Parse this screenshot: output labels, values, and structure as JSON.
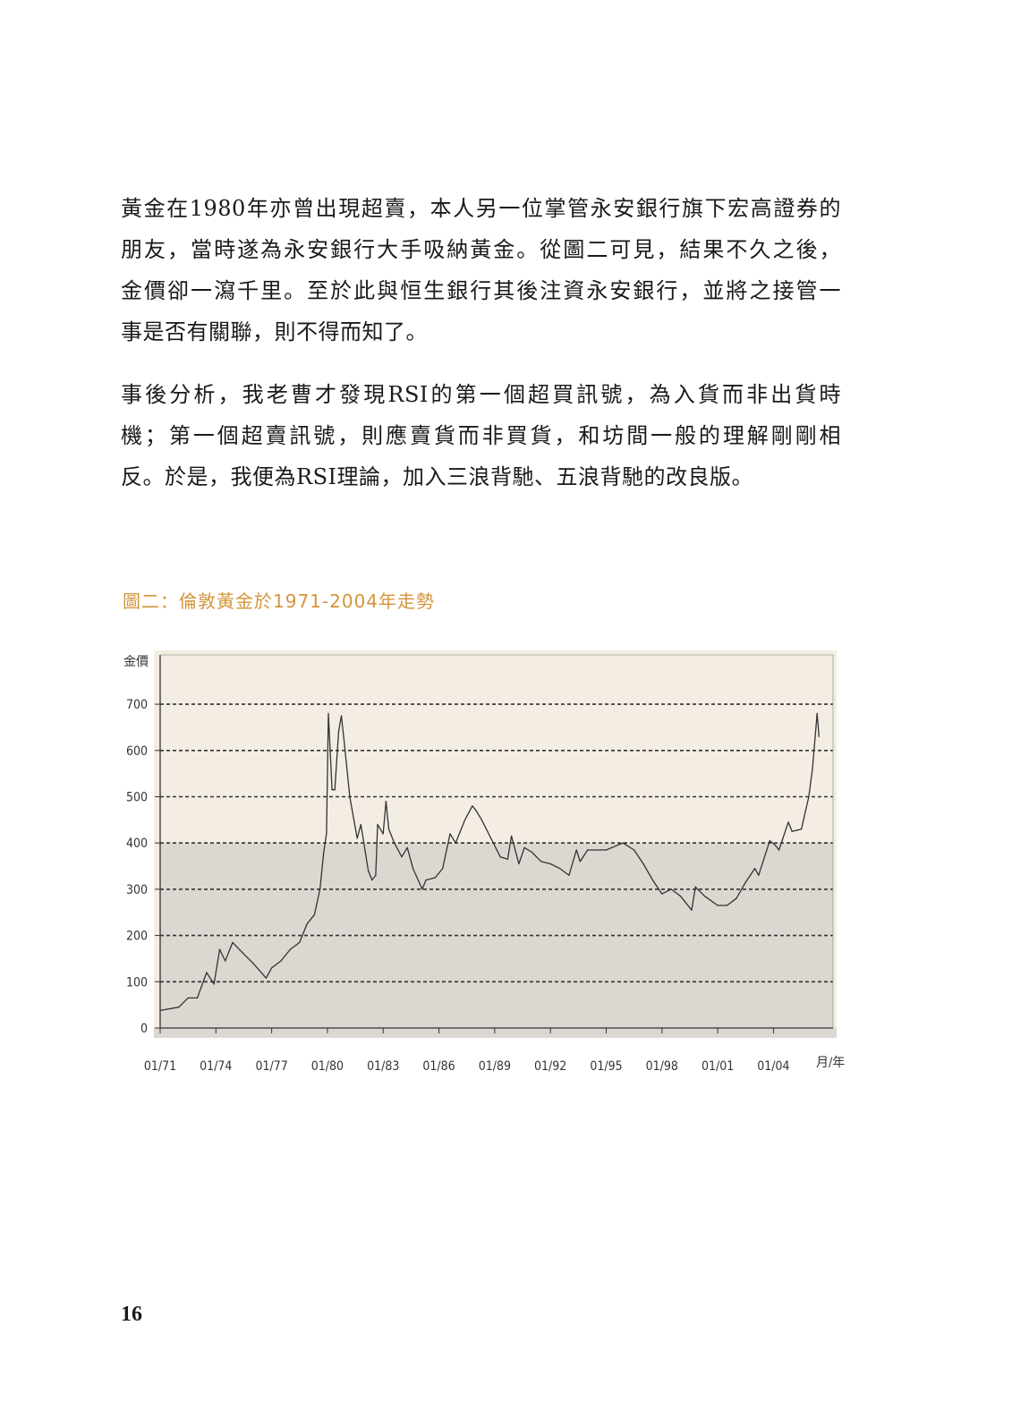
{
  "paragraphs": [
    {
      "lines": [
        "黃金在1980年亦曾出現超賣，本人另一位掌管永安銀行旗下宏高證券的",
        "朋友，當時遂為永安銀行大手吸納黃金。從圖二可見，結果不久之後，",
        "金價卻一瀉千里。至於此與恒生銀行其後注資永安銀行，並將之接管一",
        "事是否有關聯，則不得而知了。"
      ]
    },
    {
      "lines": [
        "事後分析，我老曹才發現RSI的第一個超買訊號，為入貨而非出貨時",
        "機；第一個超賣訊號，則應賣貨而非買貨，和坊間一般的理解剛剛相",
        "反。於是，我便為RSI理論，加入三浪背馳、五浪背馳的改良版。"
      ]
    }
  ],
  "figure_title": "圖二：倫敦黃金於1971-2004年走勢",
  "page_number": "16",
  "colors": {
    "title": "#d4943a",
    "plot_upper": "#f3ede4",
    "plot_lower": "#dcd8d1",
    "line": "#333333"
  },
  "chart_data": {
    "type": "line",
    "title": "圖二：倫敦黃金於1971-2004年走勢",
    "xlabel": "月/年",
    "ylabel": "金價",
    "ylim": [
      0,
      700
    ],
    "yticks": [
      0,
      100,
      200,
      300,
      400,
      500,
      600,
      700
    ],
    "xticks": [
      "01/71",
      "01/74",
      "01/77",
      "01/80",
      "01/83",
      "01/86",
      "01/89",
      "01/92",
      "01/95",
      "01/98",
      "01/01",
      "01/04"
    ],
    "grid": "horizontal dashed",
    "legend": "none",
    "x": [
      1971.0,
      1972.0,
      1972.5,
      1973.0,
      1973.5,
      1973.9,
      1974.2,
      1974.5,
      1974.9,
      1975.5,
      1976.0,
      1976.7,
      1977.0,
      1977.5,
      1978.0,
      1978.5,
      1978.9,
      1979.3,
      1979.6,
      1979.8,
      1979.95,
      1980.05,
      1980.15,
      1980.25,
      1980.4,
      1980.6,
      1980.75,
      1980.9,
      1981.2,
      1981.6,
      1981.8,
      1982.2,
      1982.4,
      1982.6,
      1982.7,
      1983.0,
      1983.15,
      1983.3,
      1983.6,
      1984.0,
      1984.3,
      1984.6,
      1985.1,
      1985.3,
      1985.8,
      1986.2,
      1986.6,
      1986.9,
      1987.4,
      1987.8,
      1988.0,
      1988.3,
      1988.8,
      1989.3,
      1989.7,
      1989.9,
      1990.3,
      1990.6,
      1991.0,
      1991.5,
      1992.0,
      1992.5,
      1993.0,
      1993.4,
      1993.6,
      1994.0,
      1995.0,
      1995.9,
      1996.5,
      1997.0,
      1997.5,
      1998.0,
      1998.5,
      1999.0,
      1999.6,
      1999.8,
      2000.3,
      2001.0,
      2001.5,
      2002.0,
      2002.5,
      2003.0,
      2003.2,
      2003.8,
      2004.1,
      2004.3,
      2004.8,
      2005.0,
      2005.5,
      2005.9,
      2006.1,
      2006.35,
      2006.45
    ],
    "values": [
      38,
      45,
      65,
      65,
      120,
      95,
      170,
      145,
      185,
      160,
      140,
      108,
      130,
      145,
      170,
      185,
      225,
      245,
      300,
      380,
      420,
      680,
      600,
      515,
      515,
      640,
      675,
      620,
      500,
      410,
      440,
      340,
      320,
      330,
      440,
      420,
      490,
      430,
      400,
      370,
      390,
      345,
      300,
      320,
      325,
      345,
      420,
      400,
      450,
      480,
      470,
      450,
      410,
      370,
      365,
      415,
      355,
      390,
      380,
      360,
      355,
      345,
      330,
      385,
      360,
      385,
      385,
      400,
      385,
      355,
      320,
      290,
      300,
      285,
      255,
      305,
      285,
      265,
      265,
      280,
      315,
      345,
      330,
      405,
      395,
      385,
      445,
      425,
      430,
      500,
      560,
      680,
      630
    ]
  }
}
